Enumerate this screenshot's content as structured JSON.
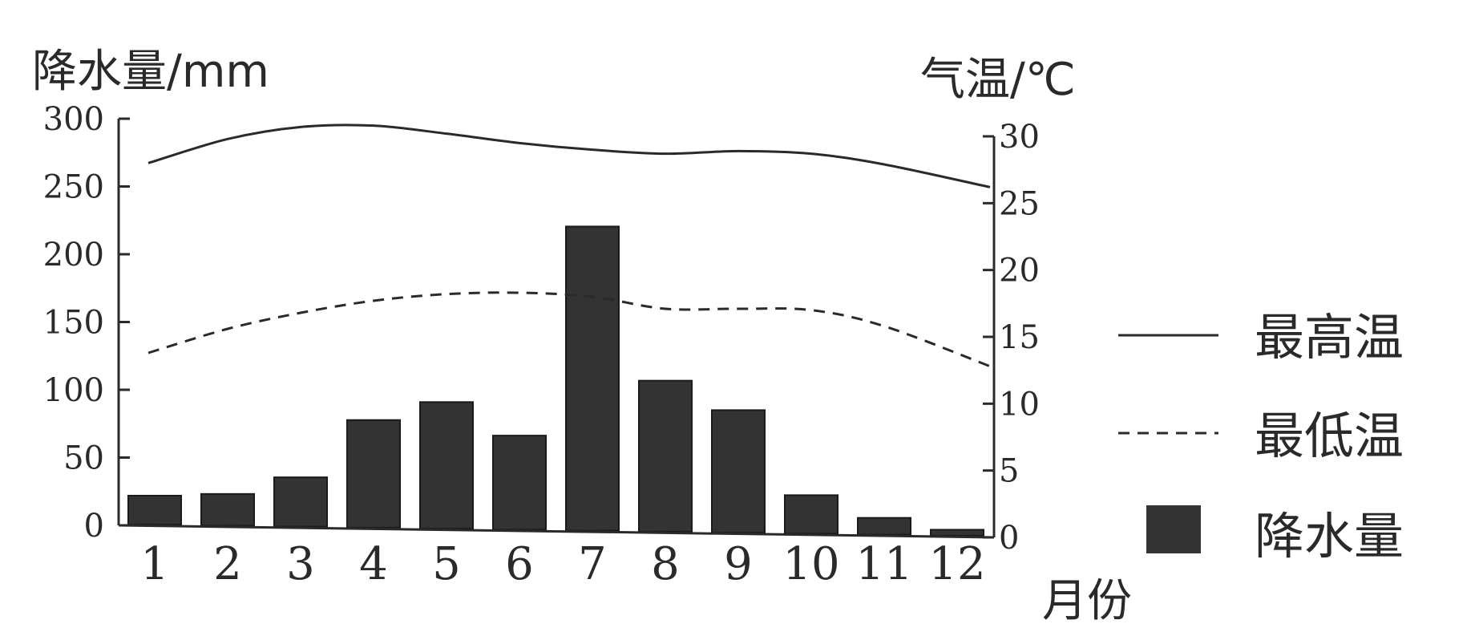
{
  "chart_data": {
    "type": "bar+line",
    "xlabel": "月份",
    "categories": [
      "1",
      "2",
      "3",
      "4",
      "5",
      "6",
      "7",
      "8",
      "9",
      "10",
      "11",
      "12"
    ],
    "left_axis": {
      "label": "降水量/mm",
      "ylim": [
        0,
        300
      ],
      "ticks": [
        "0",
        "50",
        "100",
        "150",
        "200",
        "250",
        "300"
      ]
    },
    "right_axis": {
      "label": "气温/℃",
      "ylim": [
        0,
        30
      ],
      "ticks": [
        "0",
        "5",
        "10",
        "15",
        "20",
        "25",
        "30"
      ]
    },
    "series": [
      {
        "name": "最高温",
        "kind": "line",
        "style": "solid",
        "axis": "right",
        "values": [
          28.0,
          29.8,
          30.7,
          30.8,
          30.2,
          29.5,
          29.0,
          28.7,
          28.9,
          28.7,
          27.9,
          26.2
        ]
      },
      {
        "name": "最低温",
        "kind": "line",
        "style": "dashed",
        "axis": "right",
        "values": [
          13.8,
          15.6,
          16.8,
          17.7,
          18.2,
          18.3,
          18.0,
          17.1,
          17.1,
          17.0,
          15.8,
          12.8
        ]
      },
      {
        "name": "降水量",
        "kind": "bar",
        "axis": "left",
        "values": [
          22,
          24,
          37,
          80,
          94,
          70,
          225,
          112,
          91,
          29,
          13,
          5
        ]
      }
    ],
    "grid": false,
    "legend_position": "right",
    "colors": {
      "ink": "#2a2a2a",
      "bar": "#333333"
    }
  }
}
